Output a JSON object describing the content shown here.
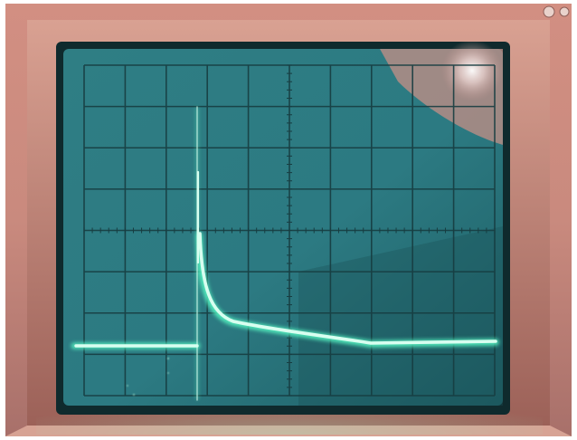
{
  "scene": {
    "kind": "oscilloscope-screen-photo",
    "colors": {
      "bezel": "#c98a7e",
      "bezel_highlight": "#e7b0a3",
      "bezel_shadow": "#7a4e45",
      "screen": "#2e7f86",
      "screen_dark": "#0f2d31",
      "graticule": "#16373b",
      "trace": "#b8ffe6",
      "trace_glow": "#55f0bf",
      "reflection": "#f3e6e6"
    },
    "graticule": {
      "divisions_x": 10,
      "divisions_y": 8
    },
    "icons": [
      "screw-icon"
    ]
  }
}
